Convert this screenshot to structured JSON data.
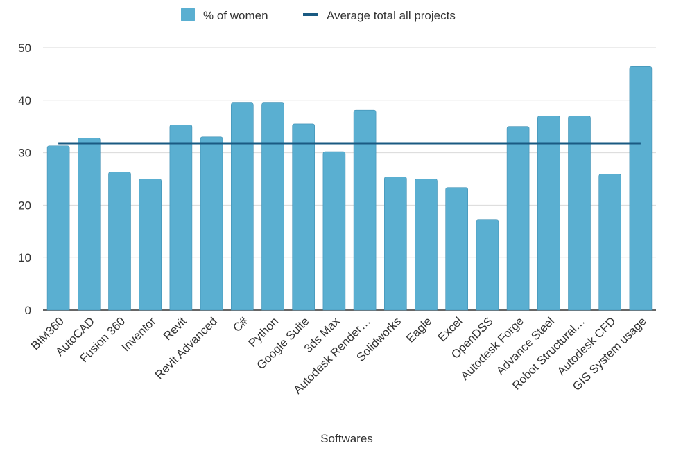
{
  "chart_data": {
    "type": "bar",
    "title": "",
    "xlabel": "Softwares",
    "ylabel": "",
    "ylim": [
      0,
      50
    ],
    "yticks": [
      0,
      10,
      20,
      30,
      40,
      50
    ],
    "grid": true,
    "legend_position": "top-center",
    "categories": [
      "BIM360",
      "AutoCAD",
      "Fusion 360",
      "Inventor",
      "Revit",
      "Revit Advanced",
      "C#",
      "Python",
      "Google Suite",
      "3ds Max",
      "Autodesk Render…",
      "Solidworks",
      "Eagle",
      "Excel",
      "OpenDSS",
      "Autodesk Forge",
      "Advance Steel",
      "Robot Structural…",
      "Autodesk CFD",
      "GIS System usage"
    ],
    "series": [
      {
        "name": "% of women",
        "type": "bar",
        "color": "#5aafd1",
        "values": [
          31.3,
          32.8,
          26.3,
          25.0,
          35.3,
          33.0,
          39.5,
          39.5,
          35.5,
          30.2,
          38.1,
          25.4,
          25.0,
          23.4,
          17.2,
          35.0,
          37.0,
          37.0,
          25.9,
          46.4
        ]
      },
      {
        "name": "Average total all projects",
        "type": "line",
        "color": "#1a5a82",
        "value": 31.8
      }
    ]
  }
}
